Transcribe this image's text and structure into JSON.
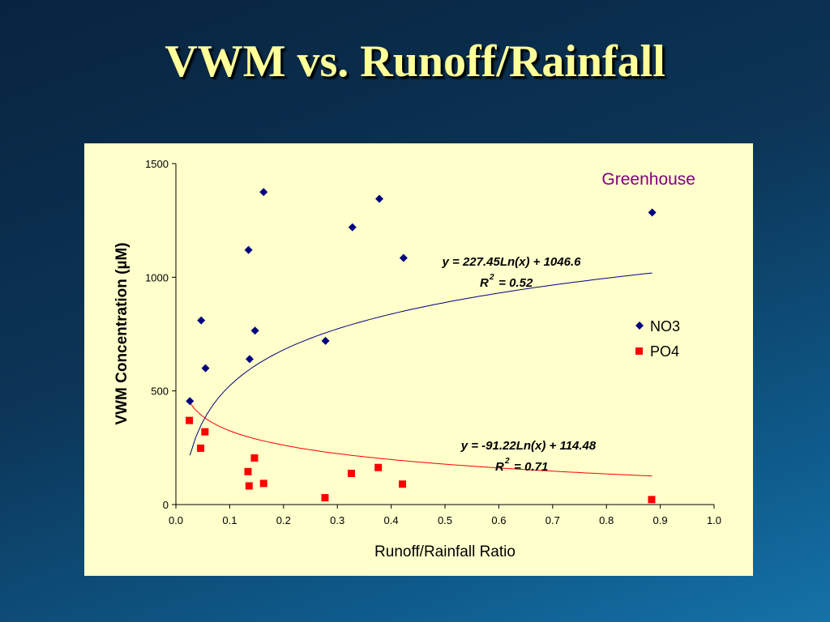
{
  "slide": {
    "title": "VWM vs. Runoff/Rainfall",
    "title_color": "#ffff99",
    "background_colors": [
      "#08233f",
      "#1572a8"
    ]
  },
  "chart_data": {
    "type": "scatter",
    "title": "Greenhouse",
    "title_color": "#800080",
    "xlabel": "Runoff/Rainfall Ratio",
    "ylabel": "VWM Concentration (µM)",
    "xlim": [
      0.0,
      1.0
    ],
    "ylim": [
      0,
      1500
    ],
    "x_ticks": [
      "0.0",
      "0.1",
      "0.2",
      "0.3",
      "0.4",
      "0.5",
      "0.6",
      "0.7",
      "0.8",
      "0.9",
      "1.0"
    ],
    "y_ticks": [
      "0",
      "500",
      "1000",
      "1500"
    ],
    "grid": false,
    "legend_position": "right",
    "plot_background": "#ffffcc",
    "series": [
      {
        "name": "NO3",
        "marker": "diamond",
        "color": "#000080",
        "points": [
          {
            "x": 0.026,
            "y": 455
          },
          {
            "x": 0.047,
            "y": 810
          },
          {
            "x": 0.055,
            "y": 600
          },
          {
            "x": 0.135,
            "y": 1120
          },
          {
            "x": 0.137,
            "y": 640
          },
          {
            "x": 0.147,
            "y": 765
          },
          {
            "x": 0.163,
            "y": 1375
          },
          {
            "x": 0.278,
            "y": 720
          },
          {
            "x": 0.328,
            "y": 1220
          },
          {
            "x": 0.378,
            "y": 1345
          },
          {
            "x": 0.423,
            "y": 1085
          },
          {
            "x": 0.885,
            "y": 1285
          }
        ],
        "trendline": {
          "equation": "y = 227.45Ln(x) + 1046.6",
          "r2_label": "R",
          "r2_exp": "2",
          "r2_value": " = 0.52",
          "a": 227.45,
          "b": 1046.6,
          "x_range": [
            0.026,
            0.885
          ],
          "color": "#000080"
        }
      },
      {
        "name": "PO4",
        "marker": "square",
        "color": "#ff0000",
        "points": [
          {
            "x": 0.025,
            "y": 370
          },
          {
            "x": 0.046,
            "y": 248
          },
          {
            "x": 0.054,
            "y": 320
          },
          {
            "x": 0.134,
            "y": 145
          },
          {
            "x": 0.136,
            "y": 82
          },
          {
            "x": 0.146,
            "y": 205
          },
          {
            "x": 0.163,
            "y": 93
          },
          {
            "x": 0.277,
            "y": 30
          },
          {
            "x": 0.326,
            "y": 137
          },
          {
            "x": 0.376,
            "y": 163
          },
          {
            "x": 0.421,
            "y": 90
          },
          {
            "x": 0.884,
            "y": 22
          }
        ],
        "trendline": {
          "equation": "y = -91.22Ln(x) + 114.48",
          "r2_label": "R",
          "r2_exp": "2",
          "r2_value": " = 0.71",
          "a": -91.22,
          "b": 114.48,
          "x_range": [
            0.025,
            0.885
          ],
          "color": "#ff0000"
        }
      }
    ]
  }
}
